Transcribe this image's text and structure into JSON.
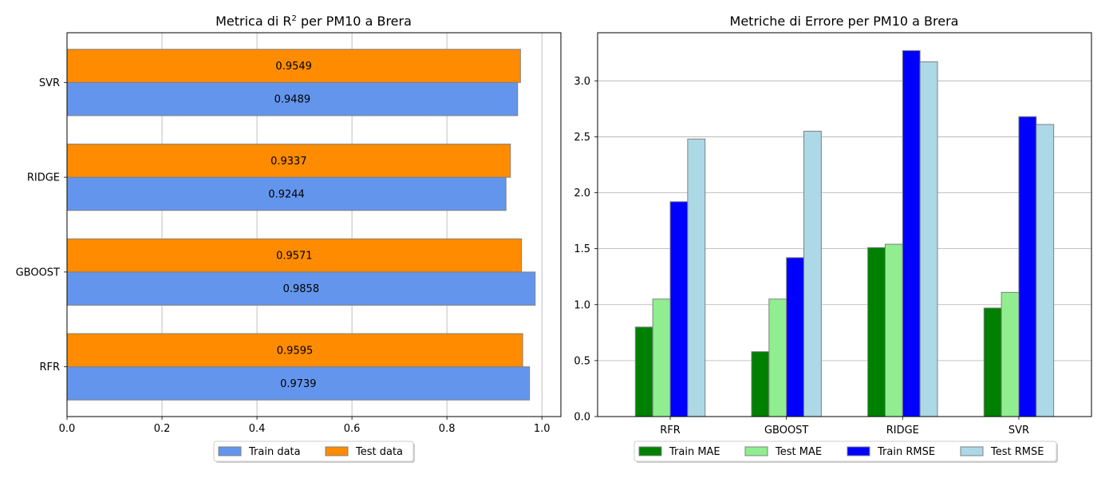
{
  "chart_data": [
    {
      "type": "bar",
      "orientation": "horizontal",
      "title_prefix": "Metrica di R",
      "title_sup": "2",
      "title_suffix": " per PM10 a Brera",
      "categories": [
        "RFR",
        "GBOOST",
        "RIDGE",
        "SVR"
      ],
      "series": [
        {
          "name": "Train data",
          "values": [
            0.9739,
            0.9858,
            0.9244,
            0.9489
          ],
          "color": "#6495ED"
        },
        {
          "name": "Test data",
          "values": [
            0.9595,
            0.9571,
            0.9337,
            0.9549
          ],
          "color": "#FF8C00"
        }
      ],
      "xlim": [
        0,
        1.04
      ],
      "xticks": [
        "0.0",
        "0.2",
        "0.4",
        "0.6",
        "0.8",
        "1.0"
      ],
      "grid": "x",
      "legend": "bottom-center"
    },
    {
      "type": "bar",
      "title": "Metriche di Errore per PM10 a Brera",
      "categories": [
        "RFR",
        "GBOOST",
        "RIDGE",
        "SVR"
      ],
      "series": [
        {
          "name": "Train MAE",
          "values": [
            0.8,
            0.58,
            1.51,
            0.97
          ],
          "color": "#008000"
        },
        {
          "name": "Test MAE",
          "values": [
            1.05,
            1.05,
            1.54,
            1.11
          ],
          "color": "#90EE90"
        },
        {
          "name": "Train RMSE",
          "values": [
            1.92,
            1.42,
            3.27,
            2.68
          ],
          "color": "#0000FF"
        },
        {
          "name": "Test RMSE",
          "values": [
            2.48,
            2.55,
            3.17,
            2.61
          ],
          "color": "#ADD8E6"
        }
      ],
      "ylim": [
        0,
        3.43
      ],
      "yticks": [
        "0.0",
        "0.5",
        "1.0",
        "1.5",
        "2.0",
        "2.5",
        "3.0"
      ],
      "grid": "y",
      "legend": "bottom-center"
    }
  ]
}
